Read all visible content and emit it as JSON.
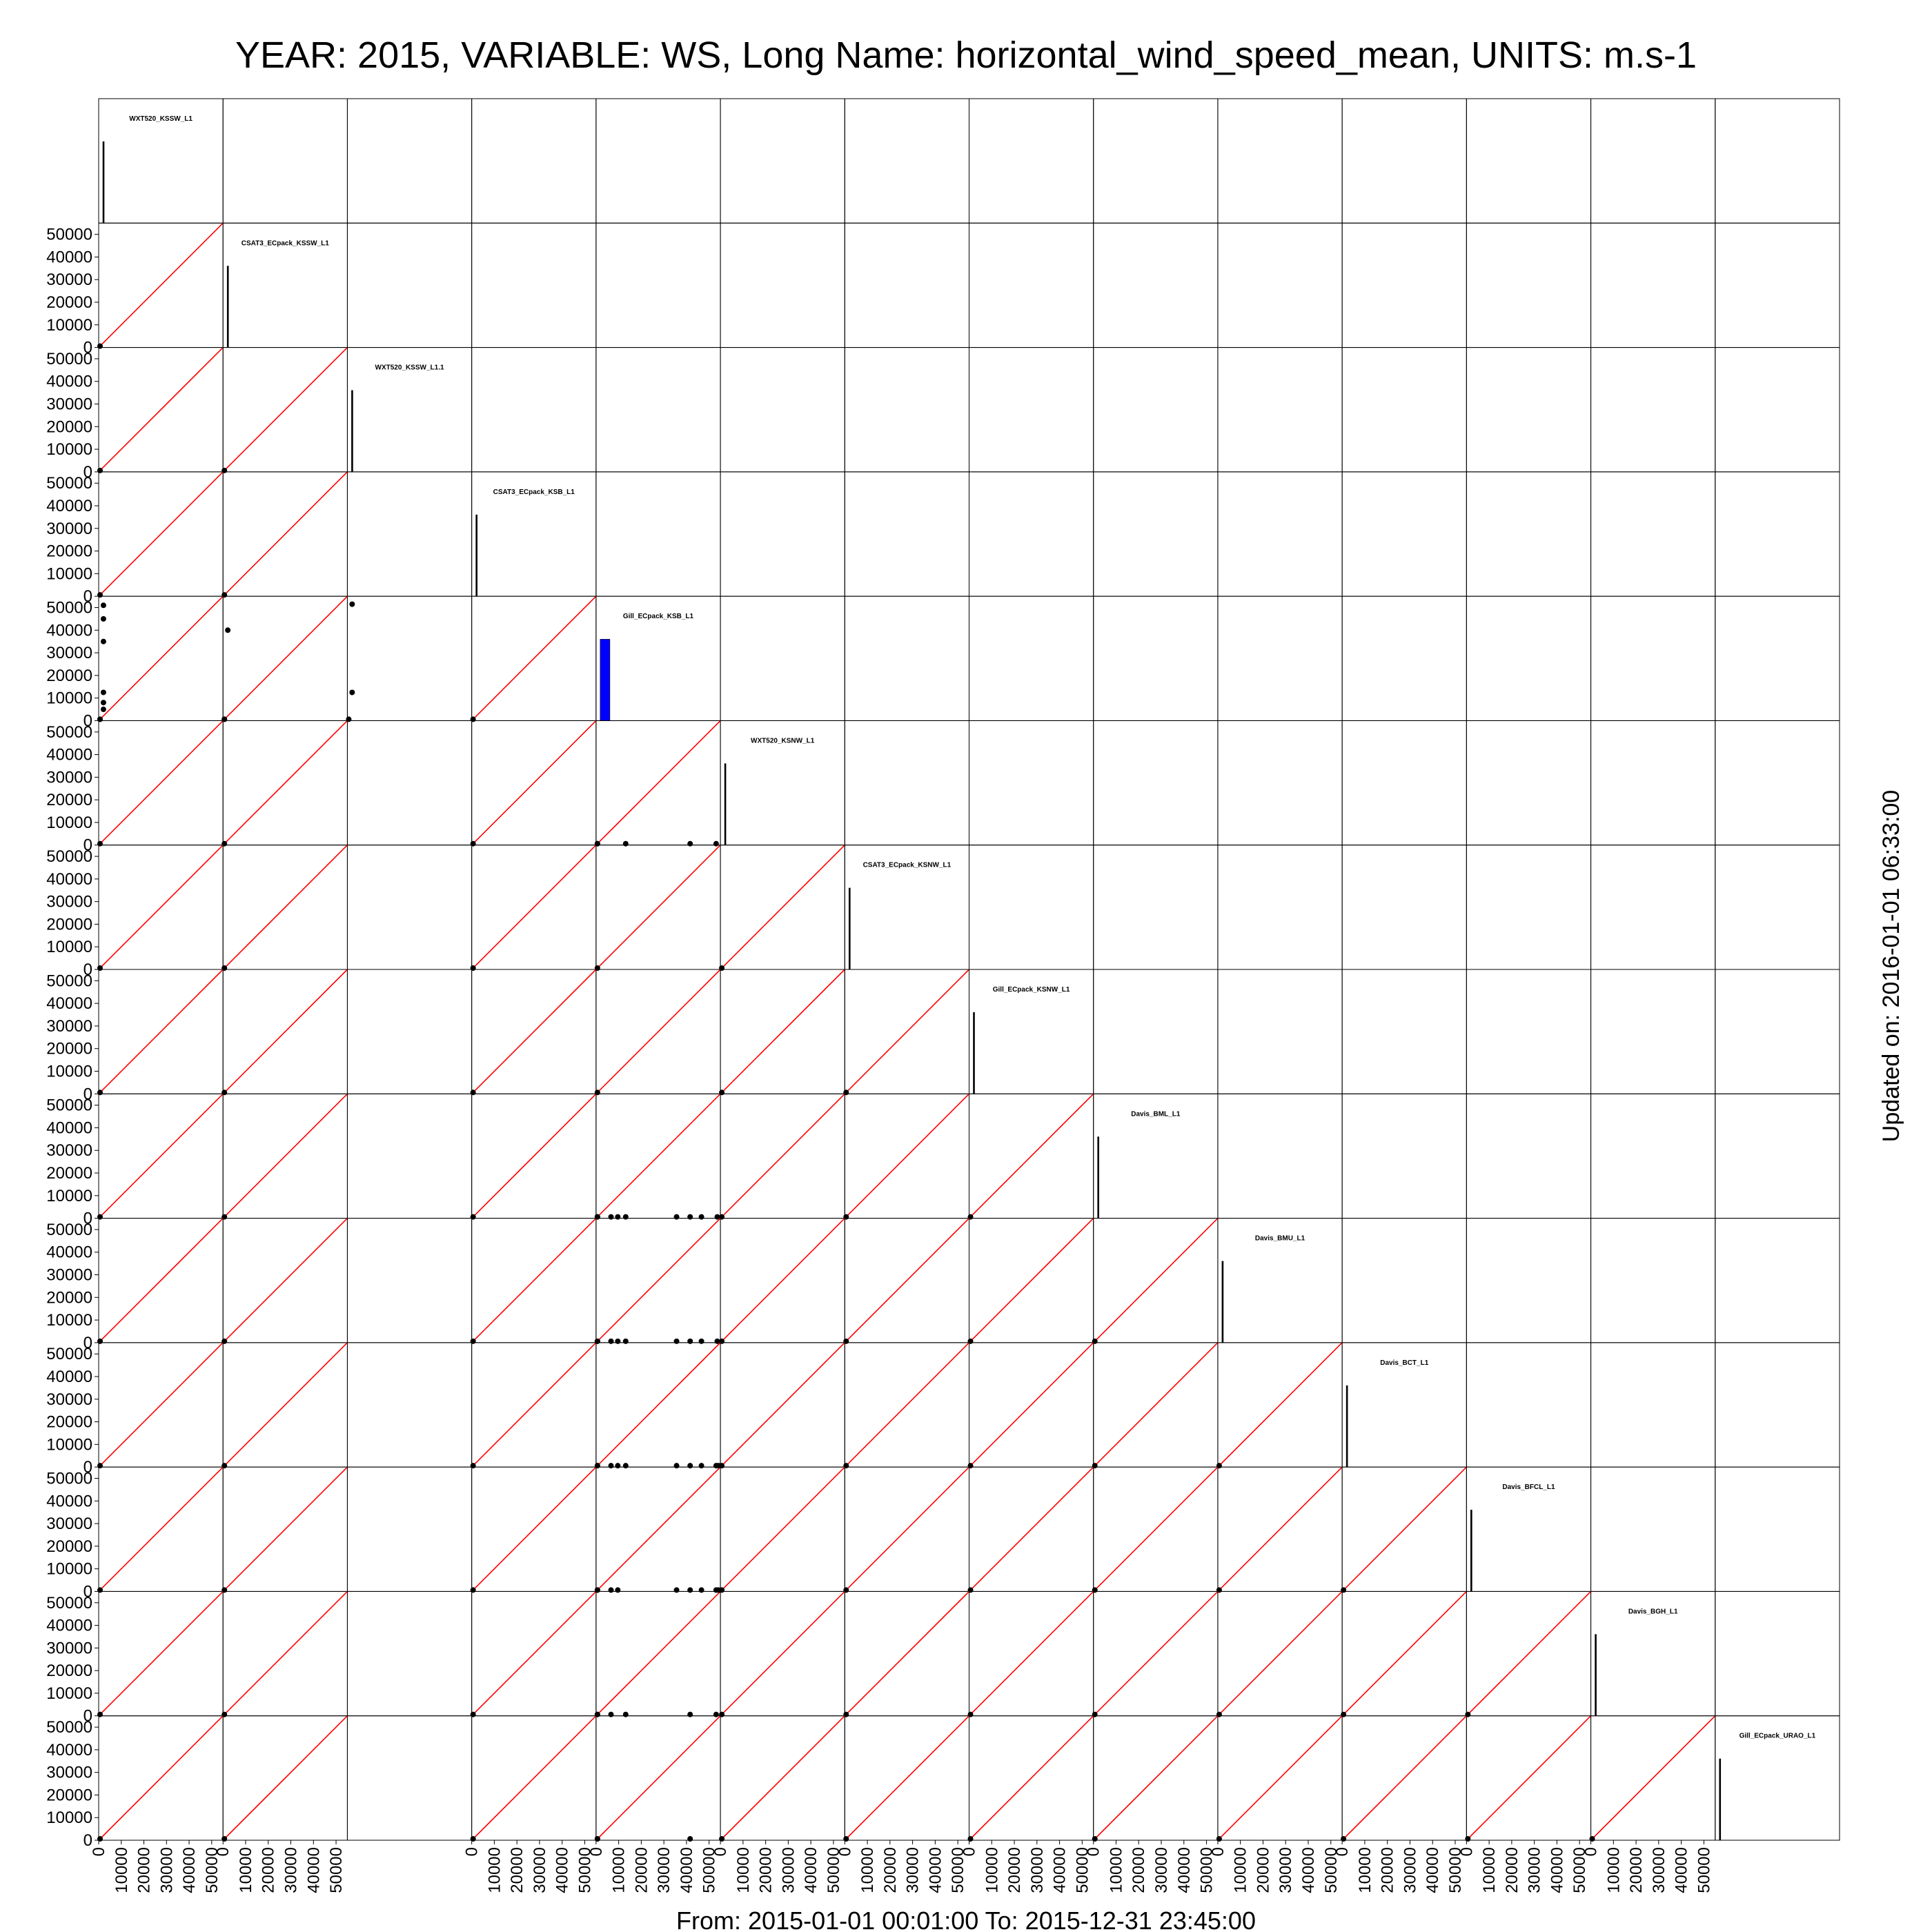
{
  "title": "YEAR: 2015, VARIABLE: WS, Long Name: horizontal_wind_speed_mean, UNITS: m.s-1",
  "footer": "From: 2015-01-01 00:01:00 To: 2015-12-31 23:45:00",
  "updated": "Updated on: 2016-01-01 06:33:00",
  "chart_data": {
    "type": "scatter",
    "layout": "scatterplot-matrix",
    "variables": [
      "WXT520_KSSW_L1",
      "CSAT3_ECpack_KSSW_L1",
      "WXT520_KSSW_L1.1",
      "CSAT3_ECpack_KSB_L1",
      "Gill_ECpack_KSB_L1",
      "WXT520_KSNW_L1",
      "CSAT3_ECpack_KSNW_L1",
      "Gill_ECpack_KSNW_L1",
      "Davis_BML_L1",
      "Davis_BMU_L1",
      "Davis_BCT_L1",
      "Davis_BFCL_L1",
      "Davis_BGH_L1",
      "Gill_ECpack_URAO_L1"
    ],
    "axis_range": [
      0,
      55000
    ],
    "tick_values": [
      0,
      10000,
      20000,
      30000,
      40000,
      50000
    ],
    "tick_labels": [
      "0",
      "10000",
      "20000",
      "30000",
      "40000",
      "50000"
    ],
    "diagonal": "histogram",
    "histogram_peak": 36000,
    "reference_line": "y = x",
    "reference_line_color": "#ff0000",
    "highlight_histogram_color": "#0000ff",
    "point_color": "#000000",
    "highlight_histogram_index": 4,
    "empty_x_columns": [
      2
    ],
    "lower_panels": [
      {
        "row": 4,
        "col": 0,
        "points": [
          [
            0,
            0
          ],
          [
            1500,
            5000
          ],
          [
            1500,
            8000
          ],
          [
            1500,
            12500
          ],
          [
            1500,
            35000
          ],
          [
            1500,
            45000
          ],
          [
            1500,
            51000
          ]
        ]
      },
      {
        "row": 4,
        "col": 1,
        "points": [
          [
            0,
            0
          ],
          [
            1500,
            40000
          ]
        ]
      },
      {
        "row": 4,
        "col": 2,
        "points": [
          [
            0,
            0
          ],
          [
            1500,
            12500
          ],
          [
            1500,
            51500
          ]
        ]
      },
      {
        "row": 5,
        "col": 4,
        "points": [
          [
            0,
            0
          ],
          [
            12500,
            0
          ],
          [
            41000,
            0
          ],
          [
            52500,
            0
          ]
        ]
      },
      {
        "row": 8,
        "col": 4,
        "points": [
          [
            0,
            0
          ],
          [
            6000,
            0
          ],
          [
            9000,
            0
          ],
          [
            12500,
            0
          ],
          [
            35000,
            0
          ],
          [
            41000,
            0
          ],
          [
            46000,
            0
          ],
          [
            53000,
            0
          ]
        ]
      },
      {
        "row": 9,
        "col": 4,
        "points": [
          [
            0,
            0
          ],
          [
            6000,
            0
          ],
          [
            9000,
            0
          ],
          [
            12500,
            0
          ],
          [
            35000,
            0
          ],
          [
            41000,
            0
          ],
          [
            46000,
            0
          ],
          [
            53000,
            0
          ]
        ]
      },
      {
        "row": 10,
        "col": 4,
        "points": [
          [
            0,
            0
          ],
          [
            6000,
            0
          ],
          [
            9000,
            0
          ],
          [
            12500,
            0
          ],
          [
            35000,
            0
          ],
          [
            41000,
            0
          ],
          [
            46000,
            0
          ],
          [
            52500,
            0
          ],
          [
            53500,
            0
          ]
        ]
      },
      {
        "row": 11,
        "col": 4,
        "points": [
          [
            0,
            0
          ],
          [
            6000,
            0
          ],
          [
            9000,
            0
          ],
          [
            35000,
            0
          ],
          [
            41000,
            0
          ],
          [
            46000,
            0
          ],
          [
            52500,
            0
          ],
          [
            53500,
            0
          ]
        ]
      },
      {
        "row": 12,
        "col": 4,
        "points": [
          [
            0,
            0
          ],
          [
            6000,
            0
          ],
          [
            12500,
            0
          ],
          [
            41000,
            0
          ],
          [
            52500,
            0
          ]
        ]
      },
      {
        "row": 13,
        "col": 4,
        "points": [
          [
            0,
            0
          ],
          [
            41000,
            0
          ]
        ]
      }
    ]
  }
}
